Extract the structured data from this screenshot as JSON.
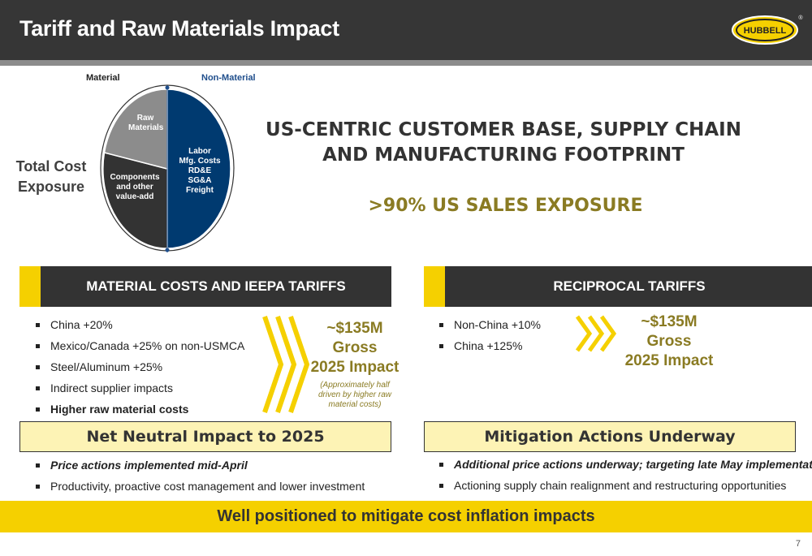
{
  "header": {
    "title": "Tariff and Raw Materials Impact",
    "logo_text": "HUBBELL",
    "logo_mark": "®"
  },
  "pie": {
    "legend_material": "Material",
    "legend_non_material": "Non-Material",
    "slices": [
      {
        "key": "raw",
        "label": [
          "Raw",
          "Materials"
        ],
        "color": "#8c8c8c"
      },
      {
        "key": "components",
        "label": [
          "Components",
          "and other",
          "value-add"
        ],
        "color": "#333333"
      },
      {
        "key": "non_material",
        "label": [
          "Labor",
          "Mfg. Costs",
          "RD&E",
          "SG&A",
          "Freight"
        ],
        "color": "#003a70"
      }
    ],
    "total_cost_line1": "Total Cost",
    "total_cost_line2": "Exposure"
  },
  "headline": {
    "line1": "US-CENTRIC CUSTOMER BASE, SUPPLY CHAIN",
    "line2": "AND MANUFACTURING FOOTPRINT",
    "sales": ">90% US SALES EXPOSURE"
  },
  "left": {
    "banner": "MATERIAL COSTS AND IEEPA TARIFFS",
    "bullets": [
      "China +20%",
      "Mexico/Canada +25% on non-USMCA",
      "Steel/Aluminum +25%",
      "Indirect supplier impacts",
      "Higher raw material costs"
    ],
    "impact_line1": "~$135M",
    "impact_line2": "Gross",
    "impact_line3": "2025 Impact",
    "impact_note": [
      "(Approximately half",
      "driven by higher raw",
      "material costs)"
    ],
    "box": "Net Neutral Impact to 2025",
    "actions": [
      "Price actions implemented mid-April",
      "Productivity, proactive cost management and lower investment"
    ]
  },
  "right": {
    "banner": "RECIPROCAL TARIFFS",
    "bullets": [
      "Non-China +10%",
      "China +125%"
    ],
    "impact_line1": "~$135M",
    "impact_line2": "Gross",
    "impact_line3": "2025 Impact",
    "box": "Mitigation Actions Underway",
    "actions": [
      "Additional price actions underway; targeting late May implementation",
      "Actioning supply chain realignment and restructuring opportunities"
    ]
  },
  "footer": {
    "text": "Well positioned to mitigate cost inflation impacts",
    "page": "7"
  },
  "colors": {
    "accent_yellow": "#f5d000",
    "dark": "#333333",
    "navy": "#003a70",
    "olive_text": "#8a7b23",
    "light_yellow": "#fdf3b5"
  }
}
